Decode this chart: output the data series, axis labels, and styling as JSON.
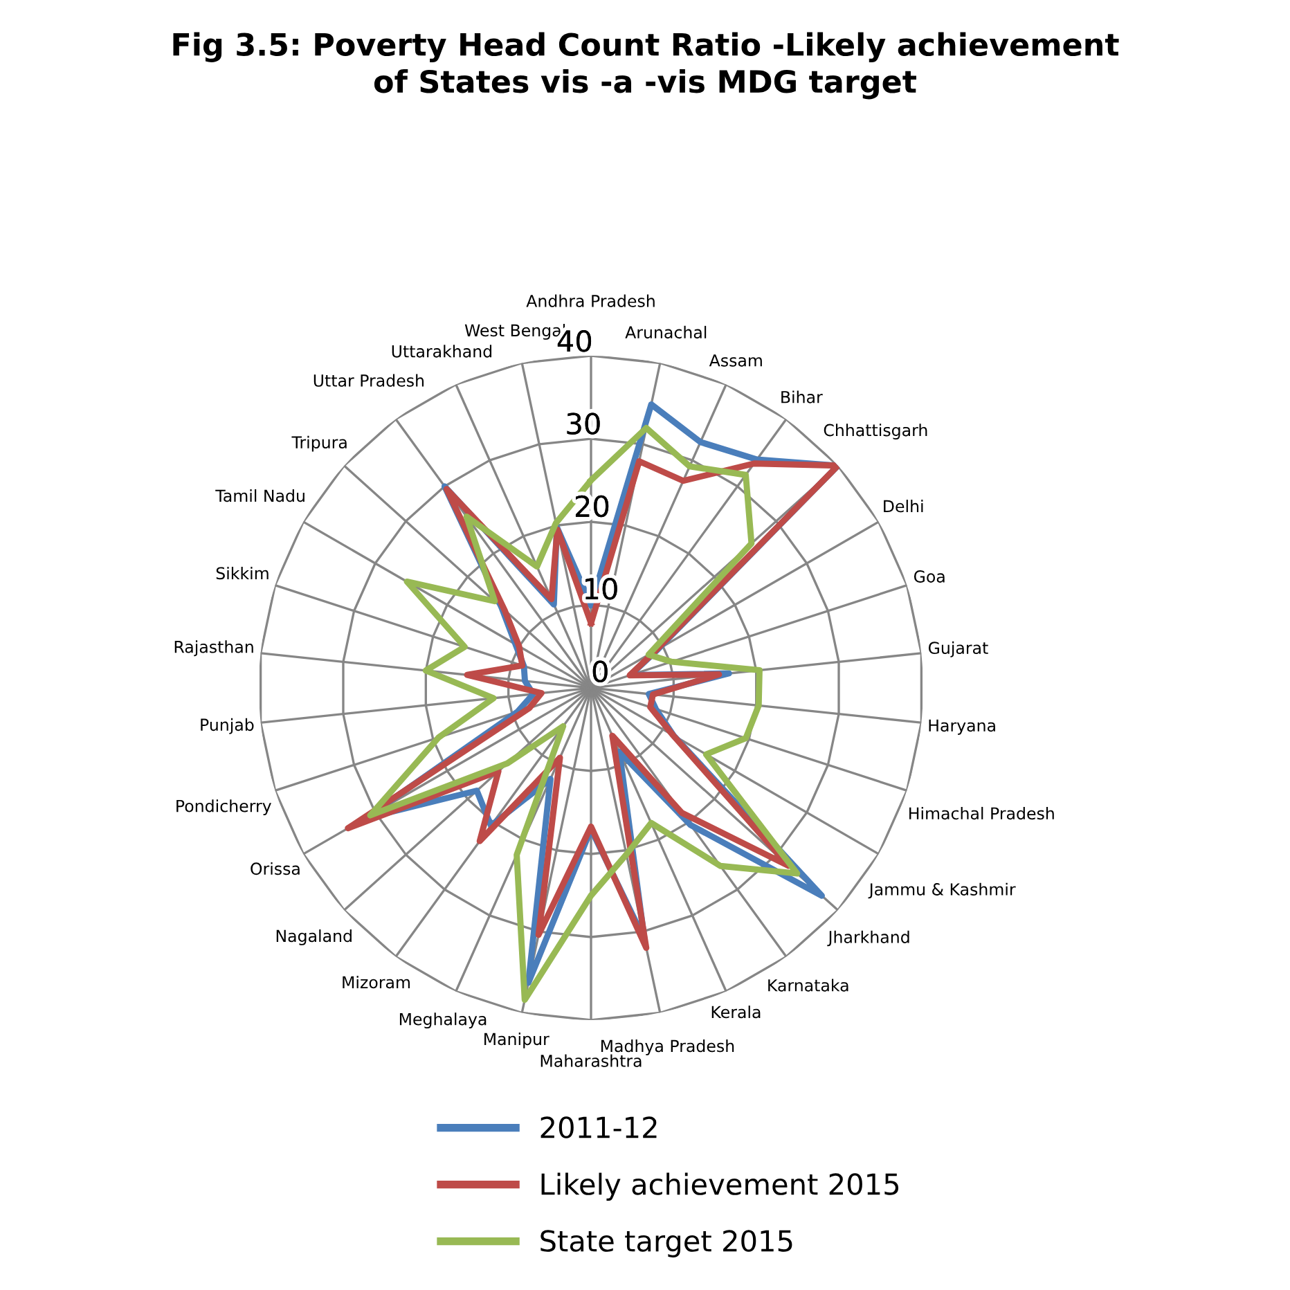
{
  "chart_data": {
    "type": "radar",
    "title": "Fig 3.5: Poverty Head Count Ratio -Likely achievement\nof States vis -a -vis MDG target",
    "categories": [
      "Andhra Pradesh",
      "Arunachal",
      "Assam",
      "Bihar",
      "Chhattisgarh",
      "Delhi",
      "Goa",
      "Gujarat",
      "Haryana",
      "Himachal Pradesh",
      "Jammu & Kashmir",
      "Jharkhand",
      "Karnataka",
      "Kerala",
      "Madhya Pradesh",
      "Maharashtra",
      "Manipur",
      "Meghalaya",
      "Mizoram",
      "Nagaland",
      "Orissa",
      "Pondicherry",
      "Punjab",
      "Rajasthan",
      "Sikkim",
      "Tamil Nadu",
      "Tripura",
      "Uttar Pradesh",
      "Uttarakhand",
      "West Bengal"
    ],
    "ylim": [
      0,
      40
    ],
    "yticks": [
      0,
      10,
      20,
      30,
      40
    ],
    "grid": true,
    "legend": "bottom",
    "marker": "none",
    "line_style": "solid",
    "series": [
      {
        "name": "2011-12",
        "color": "#4a7ebb",
        "values": [
          10,
          34.9,
          32.4,
          34,
          40,
          9.3,
          5,
          16.7,
          7,
          8.2,
          11.5,
          37.4,
          20.4,
          8.4,
          31,
          17,
          36.3,
          12,
          20.5,
          18.5,
          31.4,
          9.3,
          7,
          8,
          8.5,
          10.5,
          14.5,
          30,
          11,
          19.8
        ]
      },
      {
        "name": "Likely achievement 2015",
        "color": "#be4b48",
        "values": [
          7.8,
          27.9,
          27.3,
          33.4,
          40,
          9,
          4.9,
          15.5,
          7.5,
          7.5,
          11.4,
          32,
          18.6,
          6.3,
          32,
          16.7,
          30.4,
          9.2,
          22.8,
          15,
          33.8,
          7.8,
          6,
          15,
          8.7,
          10,
          14,
          29.6,
          11.7,
          19.5
        ]
      },
      {
        "name": "State target 2015",
        "color": "#98b954",
        "values": [
          25,
          32,
          29.2,
          31.7,
          26,
          8,
          10.2,
          20.4,
          20.3,
          19.6,
          16,
          33.4,
          26.5,
          17.8,
          20.5,
          25,
          38.4,
          22,
          5.7,
          13.6,
          30.7,
          19.3,
          11.8,
          20,
          16,
          25.6,
          15.6,
          25.5,
          16,
          20.3
        ]
      }
    ]
  }
}
